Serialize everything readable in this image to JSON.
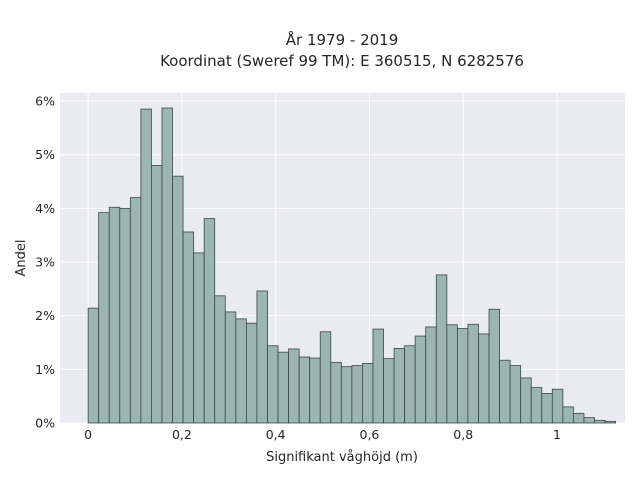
{
  "chart_data": {
    "type": "bar",
    "title_lines": [
      "År 1979 - 2019",
      "Koordinat (Sweref 99 TM): E 360515, N 6282576"
    ],
    "xlabel": "Signifikant våghöjd (m)",
    "ylabel": "Andel",
    "xlim": [
      -0.06,
      1.145
    ],
    "ylim": [
      0,
      6.15
    ],
    "x_ticks": [
      0,
      0.2,
      0.4,
      0.6,
      0.8,
      1
    ],
    "x_tick_labels": [
      "0",
      "0,2",
      "0,4",
      "0,6",
      "0,8",
      "1"
    ],
    "y_ticks": [
      0,
      1,
      2,
      3,
      4,
      5,
      6
    ],
    "y_tick_labels": [
      "0%",
      "1%",
      "2%",
      "3%",
      "4%",
      "5%",
      "6%"
    ],
    "bin_width": 0.0225,
    "bin_edges_start": 0,
    "values": [
      2.14,
      3.92,
      4.02,
      4.0,
      4.2,
      5.85,
      4.8,
      5.87,
      4.6,
      3.56,
      3.17,
      3.81,
      2.37,
      2.07,
      1.94,
      1.86,
      2.46,
      1.44,
      1.32,
      1.38,
      1.23,
      1.21,
      1.7,
      1.13,
      1.05,
      1.07,
      1.11,
      1.75,
      1.2,
      1.39,
      1.44,
      1.62,
      1.79,
      2.76,
      1.83,
      1.76,
      1.84,
      1.66,
      2.12,
      1.17,
      1.07,
      0.84,
      0.66,
      0.55,
      0.63,
      0.3,
      0.18,
      0.1,
      0.05,
      0.03
    ],
    "grid": true,
    "colors": {
      "bar_fill": "#9bb4b4",
      "bar_edge": "#3a4848",
      "plot_bg": "#eaeaf2",
      "grid": "#ffffff"
    }
  }
}
